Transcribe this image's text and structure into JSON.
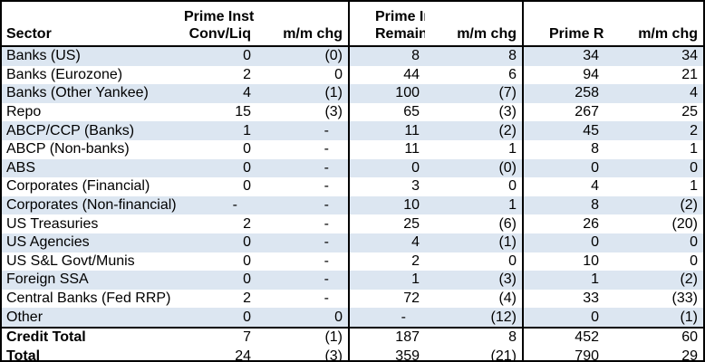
{
  "colors": {
    "stripe": "#DCE6F1",
    "border": "#000000",
    "background": "#FFFFFF",
    "text": "#000000"
  },
  "table": {
    "headers": {
      "sector": "Sector",
      "groups": [
        {
          "line1": "Prime Inst",
          "line2": "Conv/Liq",
          "mm": "m/m chg"
        },
        {
          "line1": "Prime Inst",
          "line2": "Remaining",
          "mm": "m/m chg"
        },
        {
          "line1": "",
          "line2": "Prime Retail",
          "mm": "m/m chg"
        }
      ]
    },
    "rows": [
      {
        "sector": "Banks (US)",
        "values": [
          "0",
          "(0)",
          "8",
          "8",
          "34",
          "34"
        ]
      },
      {
        "sector": "Banks (Eurozone)",
        "values": [
          "2",
          "0",
          "44",
          "6",
          "94",
          "21"
        ]
      },
      {
        "sector": "Banks (Other Yankee)",
        "values": [
          "4",
          "(1)",
          "100",
          "(7)",
          "258",
          "4"
        ]
      },
      {
        "sector": "Repo",
        "values": [
          "15",
          "(3)",
          "65",
          "(3)",
          "267",
          "25"
        ]
      },
      {
        "sector": "ABCP/CCP (Banks)",
        "values": [
          "1",
          "-",
          "11",
          "(2)",
          "45",
          "2"
        ]
      },
      {
        "sector": "ABCP (Non-banks)",
        "values": [
          "0",
          "-",
          "11",
          "1",
          "8",
          "1"
        ]
      },
      {
        "sector": "ABS",
        "values": [
          "0",
          "-",
          "0",
          "(0)",
          "0",
          "0"
        ]
      },
      {
        "sector": "Corporates (Financial)",
        "values": [
          "0",
          "-",
          "3",
          "0",
          "4",
          "1"
        ]
      },
      {
        "sector": "Corporates (Non-financial)",
        "values": [
          "-",
          "-",
          "10",
          "1",
          "8",
          "(2)"
        ]
      },
      {
        "sector": "US Treasuries",
        "values": [
          "2",
          "-",
          "25",
          "(6)",
          "26",
          "(20)"
        ]
      },
      {
        "sector": "US Agencies",
        "values": [
          "0",
          "-",
          "4",
          "(1)",
          "0",
          "0"
        ]
      },
      {
        "sector": "US S&L Govt/Munis",
        "values": [
          "0",
          "-",
          "2",
          "0",
          "10",
          "0"
        ]
      },
      {
        "sector": "Foreign SSA",
        "values": [
          "0",
          "-",
          "1",
          "(3)",
          "1",
          "(2)"
        ]
      },
      {
        "sector": "Central Banks (Fed RRP)",
        "values": [
          "2",
          "-",
          "72",
          "(4)",
          "33",
          "(33)"
        ]
      },
      {
        "sector": "Other",
        "values": [
          "0",
          "0",
          "-",
          "(12)",
          "0",
          "(1)"
        ]
      }
    ],
    "totals": [
      {
        "sector": "Credit Total",
        "values": [
          "7",
          "(1)",
          "187",
          "8",
          "452",
          "60"
        ]
      },
      {
        "sector": "Total",
        "values": [
          "24",
          "(3)",
          "359",
          "(21)",
          "790",
          "29"
        ]
      }
    ]
  }
}
